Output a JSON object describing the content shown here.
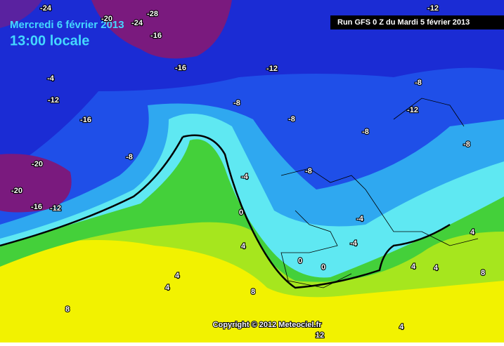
{
  "header": {
    "date": "Mercredi 6 février 2013",
    "time": "13:00 locale",
    "run": "Run GFS 0 Z du Mardi 5 février 2013"
  },
  "footer": {
    "copyright": "Copyright © 2012 Meteociel.fr"
  },
  "contour_labels": [
    -24,
    -20,
    -28,
    -24,
    -16,
    -16,
    -12,
    -4,
    -12,
    -8,
    -8,
    -12,
    -16,
    -8,
    -8,
    -8,
    -8,
    -20,
    -8,
    -4,
    -20,
    -16,
    -12,
    0,
    -4,
    4,
    4,
    -4,
    0,
    0,
    4,
    8,
    4,
    4,
    4,
    8,
    8,
    4,
    12,
    -12
  ]
}
